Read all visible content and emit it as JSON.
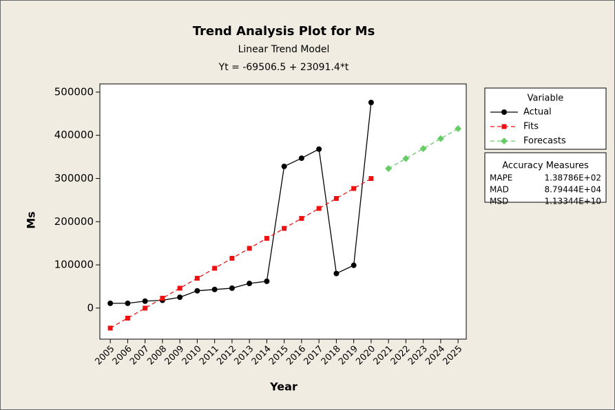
{
  "chart_data": {
    "type": "line",
    "title": "Trend Analysis Plot for Ms",
    "subtitle": "Linear Trend Model",
    "equation": "Yt = -69506.5 + 23091.4*t",
    "x_label": "Year",
    "y_label": "Ms",
    "x": [
      2005,
      2006,
      2007,
      2008,
      2009,
      2010,
      2011,
      2012,
      2013,
      2014,
      2015,
      2016,
      2017,
      2018,
      2019,
      2020,
      2021,
      2022,
      2023,
      2024,
      2025
    ],
    "series": [
      {
        "name": "Actual",
        "color": "#000000",
        "marker": "circle",
        "dash": false,
        "values": [
          11000,
          11000,
          16000,
          18000,
          25000,
          40000,
          43000,
          46000,
          57000,
          62000,
          328000,
          347000,
          368000,
          80000,
          99000,
          476000,
          null,
          null,
          null,
          null,
          null
        ]
      },
      {
        "name": "Fits",
        "color": "#ee1111",
        "marker": "square",
        "dash": true,
        "values": [
          -46415.1,
          -23323.7,
          -232.3,
          22859.1,
          45950.5,
          69041.9,
          92133.3,
          115224.7,
          138316.1,
          161407.5,
          184498.9,
          207590.3,
          230681.7,
          253773.1,
          276864.5,
          299955.9,
          null,
          null,
          null,
          null,
          null
        ]
      },
      {
        "name": "Forecasts",
        "color": "#66cc66",
        "marker": "diamond",
        "dash": true,
        "values": [
          null,
          null,
          null,
          null,
          null,
          null,
          null,
          null,
          null,
          null,
          null,
          null,
          null,
          null,
          null,
          null,
          323047.3,
          346138.7,
          369230.1,
          392321.5,
          415412.9
        ]
      }
    ],
    "xlim": [
      2004.4,
      2025.47
    ],
    "xticks": [
      2005,
      2006,
      2007,
      2008,
      2009,
      2010,
      2011,
      2012,
      2013,
      2014,
      2015,
      2016,
      2017,
      2018,
      2019,
      2020,
      2021,
      2022,
      2023,
      2024,
      2025
    ],
    "ylim": [
      -72000,
      519000
    ],
    "yticks": [
      0,
      100000,
      200000,
      300000,
      400000,
      500000
    ],
    "legend_title": "Variable",
    "accuracy_measures": {
      "title": "Accuracy Measures",
      "rows": [
        [
          "MAPE",
          "1.38786E+02"
        ],
        [
          "MAD",
          "8.79444E+04"
        ],
        [
          "MSD",
          "1.13344E+10"
        ]
      ]
    }
  }
}
